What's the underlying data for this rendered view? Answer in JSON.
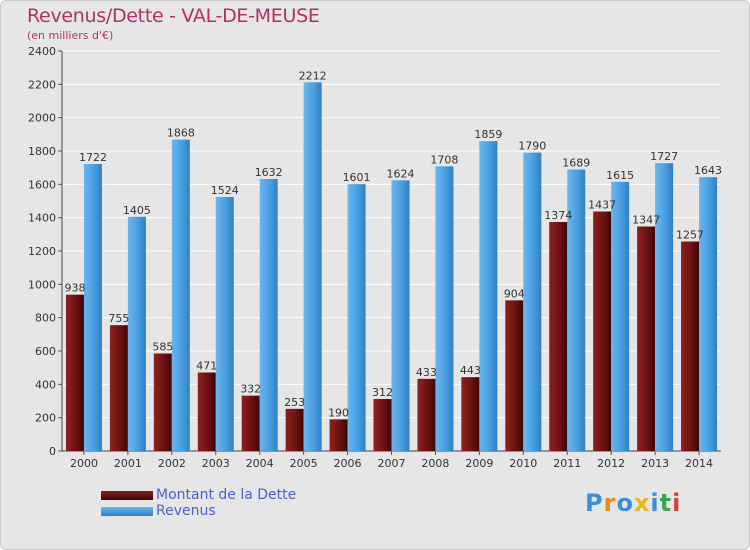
{
  "title": "Revenus/Dette - VAL-DE-MEUSE",
  "subtitle": "(en milliers d'€)",
  "logo_text": "Proxiti",
  "colors": {
    "dette": "#6b1010",
    "revenus": "#4a9fe0",
    "title": "#b0306a",
    "legend_text": "#4a5fd0",
    "background": "#e6e6e6",
    "grid": "#ffffff"
  },
  "legend": [
    {
      "label": "Montant de la Dette",
      "color": "#6b1010"
    },
    {
      "label": "Revenus",
      "color": "#4a9fe0"
    }
  ],
  "chart_data": {
    "type": "bar",
    "title": "Revenus/Dette - VAL-DE-MEUSE",
    "subtitle": "(en milliers d'€)",
    "xlabel": "",
    "ylabel": "",
    "ylim": [
      0,
      2400
    ],
    "yticks": [
      0,
      200,
      400,
      600,
      800,
      1000,
      1200,
      1400,
      1600,
      1800,
      2000,
      2200,
      2400
    ],
    "grid": true,
    "legend_position": "bottom-left",
    "categories": [
      "2000",
      "2001",
      "2002",
      "2003",
      "2004",
      "2005",
      "2006",
      "2007",
      "2008",
      "2009",
      "2010",
      "2011",
      "2012",
      "2013",
      "2014"
    ],
    "series": [
      {
        "name": "Montant de la Dette",
        "color": "#6b1010",
        "values": [
          938,
          755,
          585,
          471,
          332,
          253,
          190,
          312,
          433,
          443,
          904,
          1374,
          1437,
          1347,
          1257
        ],
        "labels": [
          "938",
          "755",
          "585",
          "471",
          "332",
          "253",
          "190",
          "312",
          "433",
          "443",
          "904",
          "1374",
          "1437",
          "1347",
          "1257"
        ]
      },
      {
        "name": "Revenus",
        "color": "#4a9fe0",
        "values": [
          1722,
          1405,
          1868,
          1524,
          1632,
          2212,
          1601,
          1624,
          1708,
          1859,
          1790,
          1689,
          1615,
          1727,
          1643
        ],
        "labels": [
          "1722",
          "1405",
          "1868",
          "1524",
          "1632",
          "2212",
          "1601",
          "1624",
          "1708",
          "1859",
          "1790",
          "1689",
          "1615",
          "1727",
          "1643"
        ]
      }
    ]
  }
}
